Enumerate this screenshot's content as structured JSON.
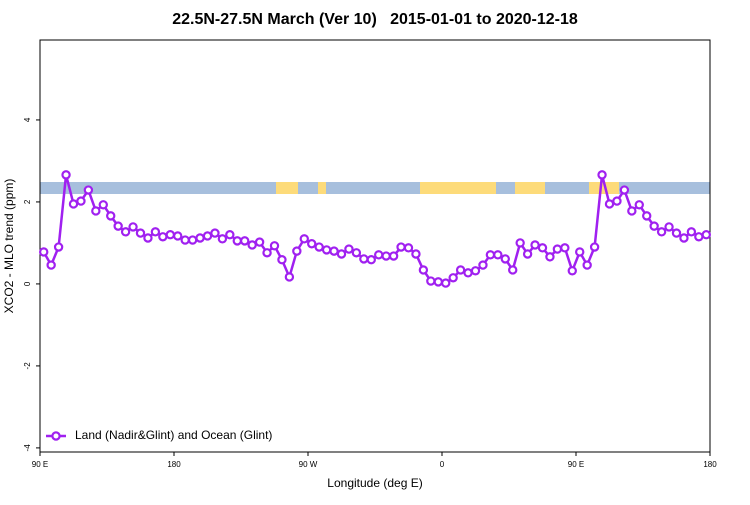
{
  "chart_data": {
    "type": "line",
    "title": "22.5N-27.5N March (Ver 10)   2015-01-01 to 2020-12-18",
    "x_label": "Longitude (deg E)",
    "y_label": "XCO2 - MLO trend (ppm)",
    "xlim": [
      90,
      540
    ],
    "xticks": [
      {
        "value": 90,
        "label": "90 E"
      },
      {
        "value": 180,
        "label": "180"
      },
      {
        "value": 270,
        "label": "90 W"
      },
      {
        "value": 360,
        "label": "0"
      },
      {
        "value": 450,
        "label": "90 E"
      },
      {
        "value": 540,
        "label": "180"
      }
    ],
    "ylim": [
      -4.1,
      5.95
    ],
    "yticks": [
      -4,
      -2,
      0,
      2,
      4
    ],
    "legend_position": "bottom-left",
    "x": [
      92.5,
      97.5,
      102.5,
      107.5,
      112.5,
      117.5,
      122.5,
      127.5,
      132.5,
      137.5,
      142.5,
      147.5,
      152.5,
      157.5,
      162.5,
      167.5,
      172.5,
      177.5,
      182.5,
      187.5,
      192.5,
      197.5,
      202.5,
      207.5,
      212.5,
      217.5,
      222.5,
      227.5,
      232.5,
      237.5,
      242.5,
      247.5,
      252.5,
      257.5,
      262.5,
      267.5,
      272.5,
      277.5,
      282.5,
      287.5,
      292.5,
      297.5,
      302.5,
      307.5,
      312.5,
      317.5,
      322.5,
      327.5,
      332.5,
      337.5,
      342.5,
      347.5,
      352.5,
      357.5,
      362.5,
      367.5,
      372.5,
      377.5,
      382.5,
      387.5,
      392.5,
      397.5,
      402.5,
      407.5,
      412.5,
      417.5,
      422.5,
      427.5,
      432.5,
      437.5,
      442.5,
      447.5,
      452.5,
      457.5,
      462.5,
      467.5,
      472.5,
      477.5,
      482.5,
      487.5,
      492.5,
      497.5,
      502.5,
      507.5,
      512.5,
      517.5,
      522.5,
      527.5,
      532.5,
      537.5
    ],
    "series": [
      {
        "name": "Land (Nadir&Glint) and Ocean (Glint)",
        "color": "#a020f0",
        "values": [
          0.78,
          0.46,
          0.9,
          2.66,
          1.95,
          2.02,
          2.29,
          1.78,
          1.93,
          1.66,
          1.41,
          1.27,
          1.39,
          1.24,
          1.12,
          1.27,
          1.15,
          1.2,
          1.17,
          1.07,
          1.07,
          1.12,
          1.17,
          1.24,
          1.1,
          1.2,
          1.05,
          1.05,
          0.95,
          1.02,
          0.76,
          0.93,
          0.59,
          0.17,
          0.8,
          1.1,
          0.98,
          0.9,
          0.83,
          0.8,
          0.73,
          0.85,
          0.76,
          0.61,
          0.59,
          0.71,
          0.68,
          0.68,
          0.9,
          0.88,
          0.73,
          0.34,
          0.07,
          0.05,
          0.02,
          0.15,
          0.34,
          0.27,
          0.32,
          0.46,
          0.71,
          0.71,
          0.61,
          0.34,
          1.0,
          0.73,
          0.95,
          0.88,
          0.66,
          0.85,
          0.88,
          0.32,
          0.78,
          0.46,
          0.9,
          2.66,
          1.95,
          2.02,
          2.29,
          1.78,
          1.93,
          1.66,
          1.41,
          1.27,
          1.39,
          1.24,
          1.12,
          1.27,
          1.15,
          1.2
        ]
      }
    ]
  }
}
